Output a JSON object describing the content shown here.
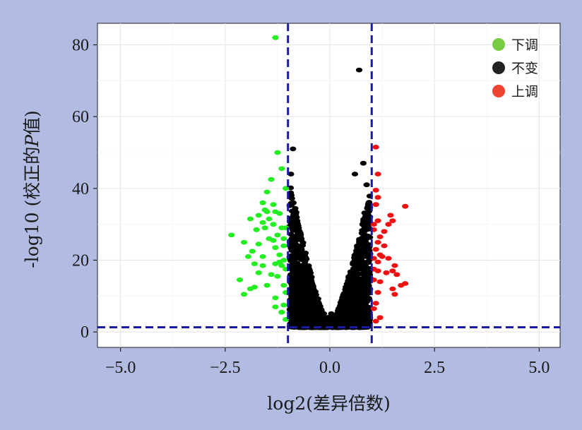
{
  "colors": {
    "background": "#b2bbe2",
    "panel": "#ffffff",
    "grid_major": "#e8e8e8",
    "grid_minor": "#f4f4f4",
    "threshold_line": "#1a1aa8",
    "down": "#22ee22",
    "none": "#000000",
    "up": "#ee1111"
  },
  "chart_data": {
    "type": "scatter",
    "xlabel": "log2(差异倍数)",
    "ylabel": "-log10 (校正的P值)",
    "ylabel_parts": {
      "prefix": "-log10 (校正的",
      "italic": "P",
      "suffix": "值)"
    },
    "xlim": [
      -5.55,
      5.5
    ],
    "ylim": [
      -4.3,
      86
    ],
    "x_ticks": [
      {
        "value": -5,
        "label": "−5.0"
      },
      {
        "value": -2.5,
        "label": "−2.5"
      },
      {
        "value": 0,
        "label": "0.0"
      },
      {
        "value": 2.5,
        "label": "2.5"
      },
      {
        "value": 5,
        "label": "5.0"
      }
    ],
    "y_ticks": [
      {
        "value": 0,
        "label": "0"
      },
      {
        "value": 20,
        "label": "20"
      },
      {
        "value": 40,
        "label": "40"
      },
      {
        "value": 60,
        "label": "60"
      },
      {
        "value": 80,
        "label": "80"
      }
    ],
    "grid": true,
    "legend": {
      "placement": "top-right",
      "entries": [
        {
          "label": "下调",
          "color": "#77cc44"
        },
        {
          "label": "不变",
          "color": "#222222"
        },
        {
          "label": "上调",
          "color": "#ee4433"
        }
      ]
    },
    "thresholds": {
      "vertical": [
        -1,
        1
      ],
      "horizontal": 1.3
    },
    "series": [
      {
        "key": "down",
        "color": "#22ee22",
        "points": [
          [
            -1.3,
            82
          ],
          [
            -1.25,
            50
          ],
          [
            -1.4,
            42.5
          ],
          [
            -1.5,
            39
          ],
          [
            -1.35,
            35.5
          ],
          [
            -1.5,
            33.5
          ],
          [
            -1.6,
            36
          ],
          [
            -1.3,
            33.5
          ],
          [
            -1.2,
            33
          ],
          [
            -1.7,
            32.5
          ],
          [
            -1.9,
            31.5
          ],
          [
            -1.6,
            30.5
          ],
          [
            -1.45,
            31.5
          ],
          [
            -1.35,
            30
          ],
          [
            -1.55,
            29
          ],
          [
            -1.75,
            28.5
          ],
          [
            -1.15,
            29
          ],
          [
            -1.05,
            29
          ],
          [
            -2.35,
            27
          ],
          [
            -1.25,
            27
          ],
          [
            -1.45,
            26
          ],
          [
            -1.1,
            26
          ],
          [
            -1.3,
            23.5
          ],
          [
            -1.7,
            24.5
          ],
          [
            -2.05,
            25
          ],
          [
            -1.85,
            22.5
          ],
          [
            -1.2,
            21.5
          ],
          [
            -1.6,
            21
          ],
          [
            -1.1,
            20
          ],
          [
            -1.3,
            19
          ],
          [
            -1.6,
            18.5
          ],
          [
            -1.8,
            19
          ],
          [
            -1.95,
            21
          ],
          [
            -1.15,
            18.5
          ],
          [
            -1.05,
            17.5
          ],
          [
            -1.4,
            16
          ],
          [
            -1.7,
            16.5
          ],
          [
            -2.15,
            14.5
          ],
          [
            -1.25,
            15.5
          ],
          [
            -1.1,
            13
          ],
          [
            -1.5,
            13
          ],
          [
            -1.8,
            12.5
          ],
          [
            -1.9,
            12
          ],
          [
            -2.05,
            10.5
          ],
          [
            -1.05,
            11
          ],
          [
            -1.3,
            9.5
          ],
          [
            -1.1,
            7.5
          ],
          [
            -1.3,
            7
          ],
          [
            -1.15,
            5.5
          ],
          [
            -1.05,
            3.5
          ],
          [
            -1.2,
            19.5
          ],
          [
            -1.1,
            24
          ],
          [
            -1.35,
            25.5
          ],
          [
            -1.55,
            34
          ],
          [
            -1.15,
            45.5
          ],
          [
            -1.05,
            40
          ]
        ]
      },
      {
        "key": "up",
        "color": "#ee1111",
        "points": [
          [
            1.1,
            51.5
          ],
          [
            1.15,
            44
          ],
          [
            1.1,
            39.5
          ],
          [
            1.15,
            37.5
          ],
          [
            1.1,
            35.5
          ],
          [
            1.8,
            35
          ],
          [
            1.45,
            32.5
          ],
          [
            1.5,
            31
          ],
          [
            1.4,
            30
          ],
          [
            1.15,
            31
          ],
          [
            1.05,
            30
          ],
          [
            1.3,
            28
          ],
          [
            1.2,
            26.5
          ],
          [
            1.05,
            28.5
          ],
          [
            1.15,
            25
          ],
          [
            1.3,
            24
          ],
          [
            1.1,
            23
          ],
          [
            1.2,
            21.5
          ],
          [
            1.05,
            20.5
          ],
          [
            1.25,
            21
          ],
          [
            1.4,
            20.5
          ],
          [
            1.15,
            19.5
          ],
          [
            1.55,
            18.5
          ],
          [
            1.5,
            17
          ],
          [
            1.15,
            17
          ],
          [
            1.05,
            17.5
          ],
          [
            1.35,
            16.5
          ],
          [
            1.6,
            16
          ],
          [
            1.8,
            13.5
          ],
          [
            1.7,
            13
          ],
          [
            1.2,
            14
          ],
          [
            1.05,
            14.5
          ],
          [
            1.5,
            12
          ],
          [
            1.15,
            11
          ],
          [
            1.55,
            10.5
          ],
          [
            1.1,
            8
          ],
          [
            1.05,
            6.5
          ],
          [
            1.2,
            4
          ],
          [
            1.1,
            3
          ]
        ]
      },
      {
        "key": "none",
        "color": "#000000",
        "points": [
          [
            0.7,
            73
          ],
          [
            -0.88,
            51
          ],
          [
            0.8,
            47
          ],
          [
            -0.93,
            44
          ],
          [
            0.6,
            44
          ],
          [
            0.88,
            41
          ]
        ]
      }
    ],
    "none_cloud": {
      "left_peak": [
        -0.85,
        43
      ],
      "left_min": [
        -0.06,
        1.6
      ],
      "right_peak": [
        0.85,
        41
      ],
      "right_min": [
        0.06,
        1.6
      ]
    }
  }
}
